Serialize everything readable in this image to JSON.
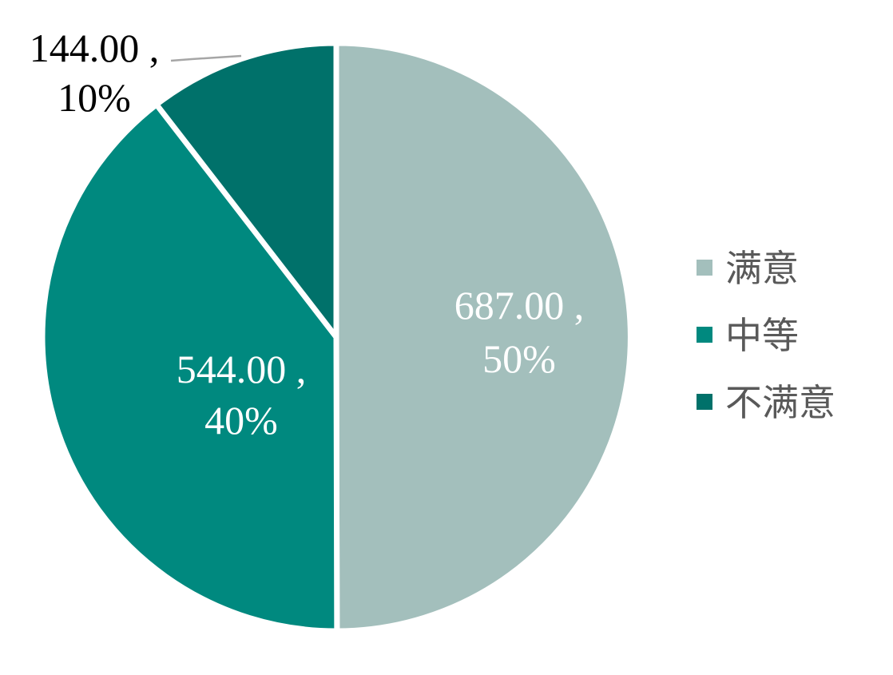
{
  "chart_data": {
    "type": "pie",
    "slices": [
      {
        "name": "满意",
        "value": 687.0,
        "value_text": "687.00 ,",
        "percent_text": "50%",
        "color": "#a3bfbc",
        "label_color": "#ffffff"
      },
      {
        "name": "中等",
        "value": 544.0,
        "value_text": "544.00 ,",
        "percent_text": "40%",
        "color": "#00897f",
        "label_color": "#ffffff"
      },
      {
        "name": "不满意",
        "value": 144.0,
        "value_text": "144.00 ,",
        "percent_text": "10%",
        "color": "#00716a",
        "label_color": "#000000"
      }
    ],
    "start_angle_deg": 0,
    "direction": "clockwise",
    "legend_position": "right"
  }
}
